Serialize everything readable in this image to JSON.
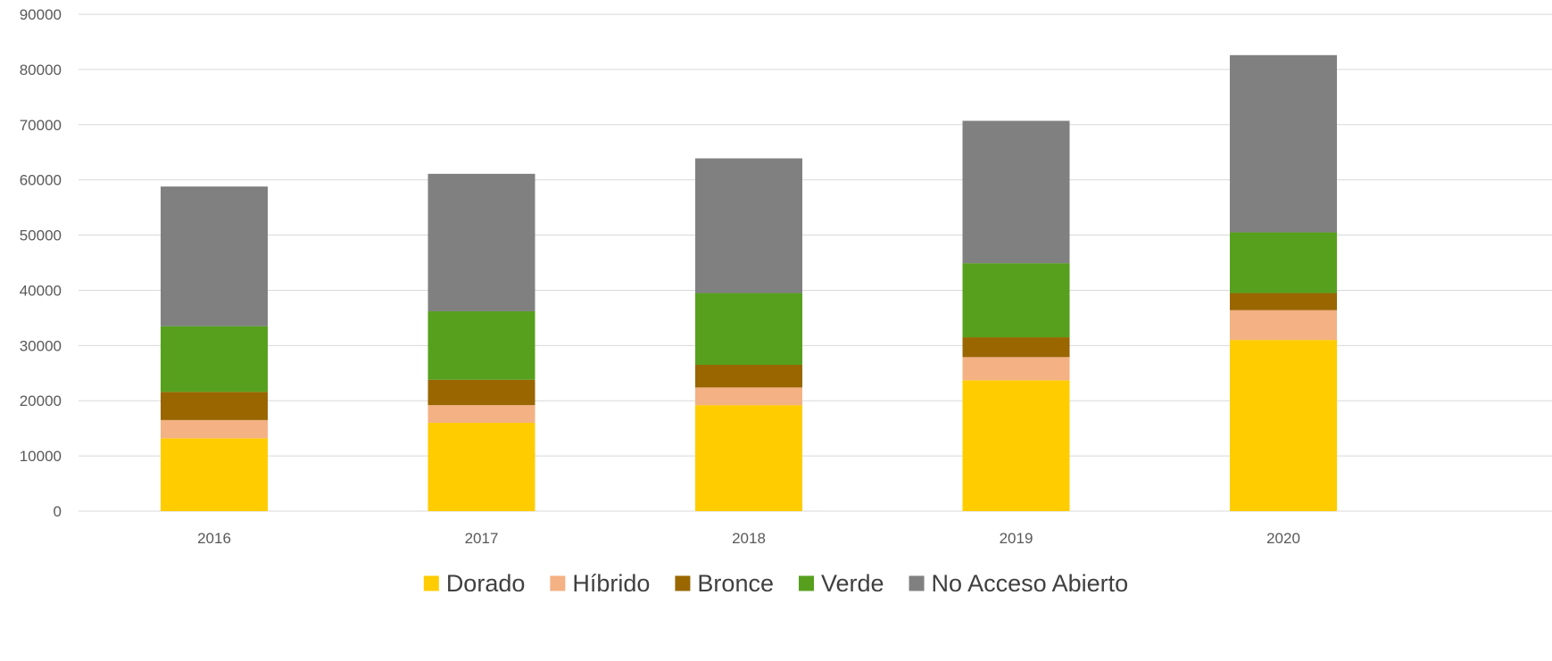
{
  "chart_data": {
    "type": "bar",
    "stacked": true,
    "categories": [
      "2016",
      "2017",
      "2018",
      "2019",
      "2020"
    ],
    "series": [
      {
        "name": "Dorado",
        "color": "#ffcc00",
        "values": [
          13200,
          16000,
          19200,
          23700,
          31000
        ]
      },
      {
        "name": "Híbrido",
        "color": "#f4b183",
        "values": [
          3300,
          3200,
          3200,
          4200,
          5400
        ]
      },
      {
        "name": "Bronce",
        "color": "#996600",
        "values": [
          5100,
          4600,
          4100,
          3600,
          3100
        ]
      },
      {
        "name": "Verde",
        "color": "#56a01e",
        "values": [
          11900,
          12400,
          13000,
          13400,
          11000
        ]
      },
      {
        "name": "No Acceso Abierto",
        "color": "#808080",
        "values": [
          25300,
          24900,
          24400,
          25800,
          32100
        ]
      }
    ],
    "ylim": [
      0,
      90000
    ],
    "y_ticks": [
      0,
      10000,
      20000,
      30000,
      40000,
      50000,
      60000,
      70000,
      80000,
      90000
    ],
    "grid": true,
    "legend_position": "bottom",
    "title": "",
    "xlabel": "",
    "ylabel": ""
  }
}
